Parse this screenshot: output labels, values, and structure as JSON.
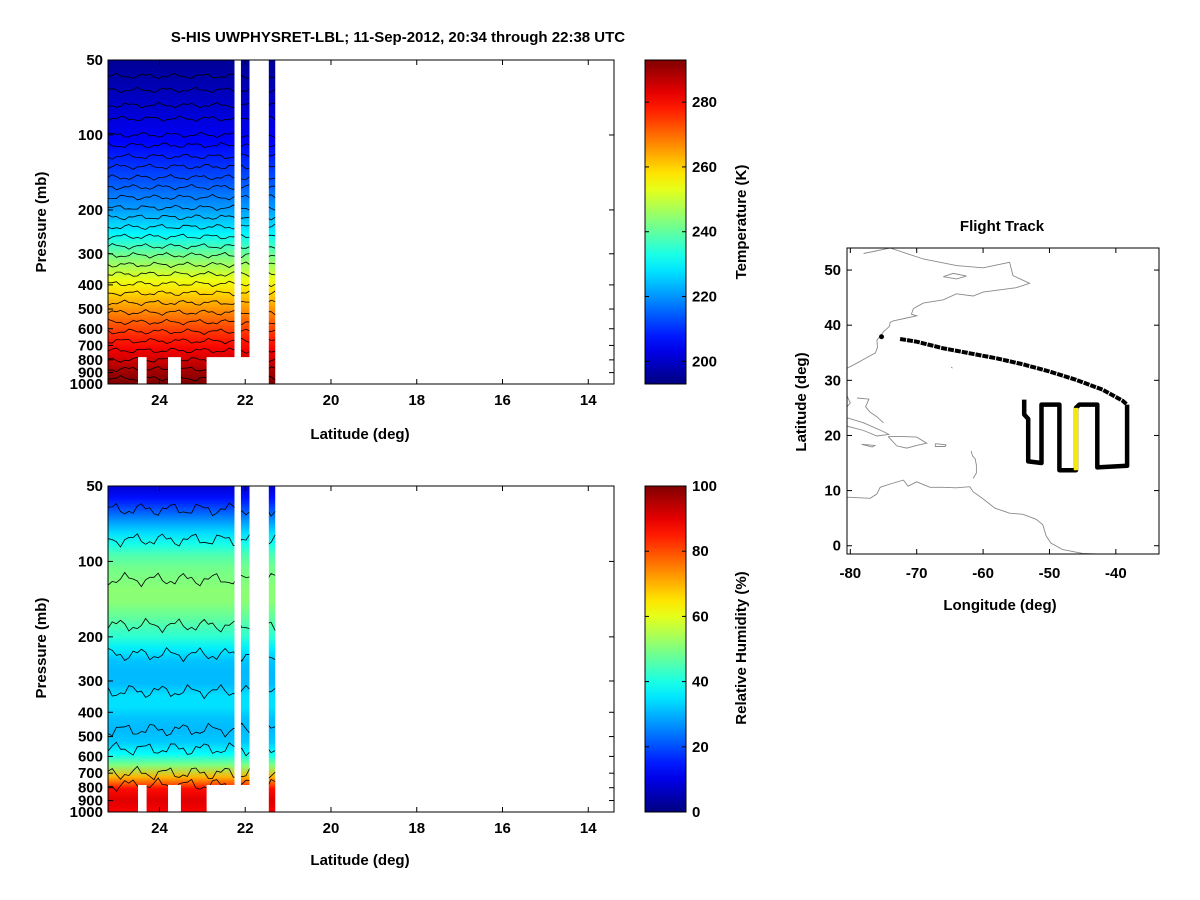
{
  "title": "S-HIS UWPHYSRET-LBL;   11-Sep-2012, 20:34 through 22:38 UTC",
  "chart_data": [
    {
      "id": "temperature",
      "type": "heatmap",
      "xlabel": "Latitude (deg)",
      "ylabel": "Pressure (mb)",
      "xlim": [
        25.2,
        13.4
      ],
      "xticks": [
        24,
        22,
        20,
        18,
        16,
        14
      ],
      "xtick_labels": [
        "24",
        "22",
        "20",
        "18",
        "16",
        "14"
      ],
      "ylim": [
        50,
        1000
      ],
      "yscale": "log",
      "yticks": [
        50,
        100,
        200,
        300,
        400,
        500,
        600,
        700,
        800,
        900,
        1000
      ],
      "ytick_labels": [
        "50",
        "100",
        "200",
        "300",
        "400",
        "500",
        "600",
        "700",
        "800",
        "900",
        "1000"
      ],
      "colorbar": {
        "label": "Temperature (K)",
        "range": [
          193,
          293
        ],
        "ticks": [
          200,
          220,
          240,
          260,
          280
        ],
        "tick_labels": [
          "200",
          "220",
          "240",
          "260",
          "280"
        ]
      },
      "data_extent_lat": [
        25.2,
        21.3
      ],
      "gaps_lat": [
        [
          22.25,
          22.1
        ],
        [
          21.9,
          21.45
        ]
      ],
      "surface_gap_pressure": 780,
      "profile": [
        {
          "p": 50,
          "v": 195
        },
        {
          "p": 100,
          "v": 204
        },
        {
          "p": 150,
          "v": 213
        },
        {
          "p": 200,
          "v": 221
        },
        {
          "p": 250,
          "v": 230
        },
        {
          "p": 300,
          "v": 241
        },
        {
          "p": 400,
          "v": 256
        },
        {
          "p": 500,
          "v": 266
        },
        {
          "p": 600,
          "v": 274
        },
        {
          "p": 700,
          "v": 280
        },
        {
          "p": 800,
          "v": 285
        },
        {
          "p": 900,
          "v": 290
        },
        {
          "p": 1000,
          "v": 293
        }
      ],
      "contour_pressures": [
        58,
        66,
        76,
        86,
        100,
        110,
        122,
        134,
        148,
        162,
        178,
        196,
        214,
        234,
        256,
        280,
        304,
        332,
        362,
        396,
        432,
        472,
        516,
        564,
        616,
        672,
        734,
        800,
        872,
        950
      ]
    },
    {
      "id": "humidity",
      "type": "heatmap",
      "xlabel": "Latitude (deg)",
      "ylabel": "Pressure (mb)",
      "xlim": [
        25.2,
        13.4
      ],
      "xticks": [
        24,
        22,
        20,
        18,
        16,
        14
      ],
      "xtick_labels": [
        "24",
        "22",
        "20",
        "18",
        "16",
        "14"
      ],
      "ylim": [
        50,
        1000
      ],
      "yscale": "log",
      "yticks": [
        50,
        100,
        200,
        300,
        400,
        500,
        600,
        700,
        800,
        900,
        1000
      ],
      "ytick_labels": [
        "50",
        "100",
        "200",
        "300",
        "400",
        "500",
        "600",
        "700",
        "800",
        "900",
        "1000"
      ],
      "colorbar": {
        "label": "Relative Humidity (%)",
        "range": [
          0,
          100
        ],
        "ticks": [
          0,
          20,
          40,
          60,
          80,
          100
        ],
        "tick_labels": [
          "0",
          "20",
          "40",
          "60",
          "80",
          "100"
        ]
      },
      "data_extent_lat": [
        25.2,
        21.3
      ],
      "gaps_lat": [
        [
          22.25,
          22.1
        ],
        [
          21.9,
          21.45
        ]
      ],
      "surface_gap_pressure": 780,
      "profile": [
        {
          "p": 50,
          "v": 8
        },
        {
          "p": 60,
          "v": 18
        },
        {
          "p": 75,
          "v": 33
        },
        {
          "p": 100,
          "v": 48
        },
        {
          "p": 140,
          "v": 52
        },
        {
          "p": 200,
          "v": 42
        },
        {
          "p": 240,
          "v": 32
        },
        {
          "p": 300,
          "v": 30
        },
        {
          "p": 360,
          "v": 36
        },
        {
          "p": 450,
          "v": 30
        },
        {
          "p": 550,
          "v": 33
        },
        {
          "p": 620,
          "v": 42
        },
        {
          "p": 700,
          "v": 62
        },
        {
          "p": 760,
          "v": 80
        },
        {
          "p": 850,
          "v": 92
        },
        {
          "p": 1000,
          "v": 88
        }
      ],
      "contour_pressures": [
        62,
        82,
        118,
        180,
        235,
        330,
        470,
        560,
        700,
        780
      ]
    },
    {
      "id": "flight-track",
      "type": "line",
      "title": "Flight Track",
      "xlabel": "Longitude (deg)",
      "ylabel": "Latitude (deg)",
      "xlim": [
        -80.5,
        -33.5
      ],
      "ylim": [
        -1.5,
        54
      ],
      "xticks": [
        -80,
        -70,
        -60,
        -50,
        -40
      ],
      "xtick_labels": [
        "-80",
        "-70",
        "-60",
        "-50",
        "-40"
      ],
      "yticks": [
        0,
        10,
        20,
        30,
        40,
        50
      ],
      "ytick_labels": [
        "0",
        "10",
        "20",
        "30",
        "40",
        "50"
      ],
      "transit_track": [
        [
          -72.5,
          37.5
        ],
        [
          -70,
          37.0
        ],
        [
          -66,
          35.8
        ],
        [
          -62,
          34.9
        ],
        [
          -58,
          34.0
        ],
        [
          -54,
          32.9
        ],
        [
          -50,
          31.6
        ],
        [
          -46,
          30.1
        ],
        [
          -42,
          28.3
        ],
        [
          -39,
          26.3
        ],
        [
          -38.3,
          25.6
        ]
      ],
      "pattern_track": [
        [
          -38.3,
          25.6
        ],
        [
          -38.3,
          14.5
        ],
        [
          -42.8,
          14.2
        ],
        [
          -42.8,
          25.6
        ],
        [
          -45.5,
          25.6
        ],
        [
          -46,
          25.0
        ],
        [
          -46,
          13.7
        ],
        [
          -48.5,
          13.7
        ],
        [
          -48.5,
          25.6
        ],
        [
          -51.2,
          25.6
        ],
        [
          -51.2,
          15.0
        ],
        [
          -53.2,
          15.3
        ],
        [
          -53.2,
          23.0
        ],
        [
          -53.8,
          23.8
        ],
        [
          -53.8,
          26.5
        ]
      ],
      "highlight_track": [
        [
          -46,
          25.0
        ],
        [
          -46,
          13.7
        ]
      ],
      "origin_point": [
        -75.3,
        37.9
      ],
      "track_color": "#000000",
      "highlight_color": "#f5e80f",
      "coastlines": [
        [
          [
            -78,
            53
          ],
          [
            -74,
            54
          ],
          [
            -69,
            52
          ],
          [
            -64,
            50.8
          ],
          [
            -60,
            50.4
          ],
          [
            -56,
            51.4
          ],
          [
            -55.5,
            49
          ],
          [
            -53,
            47.6
          ],
          [
            -55,
            46.8
          ],
          [
            -60,
            46
          ],
          [
            -61.5,
            45.3
          ],
          [
            -64,
            45.7
          ],
          [
            -66,
            44.6
          ],
          [
            -69,
            44
          ],
          [
            -70.5,
            43
          ],
          [
            -70.8,
            42
          ],
          [
            -70,
            41.7
          ],
          [
            -71.5,
            41.3
          ],
          [
            -73.5,
            40.8
          ],
          [
            -74,
            40.5
          ],
          [
            -74.1,
            39.8
          ],
          [
            -75,
            38.8
          ],
          [
            -76,
            37.3
          ],
          [
            -75.9,
            36
          ],
          [
            -76.2,
            35
          ],
          [
            -78,
            33.8
          ],
          [
            -79.2,
            33
          ],
          [
            -80.5,
            32.2
          ]
        ],
        [
          [
            -66,
            48.8
          ],
          [
            -64.5,
            49.4
          ],
          [
            -62.5,
            48.9
          ],
          [
            -64,
            48.4
          ],
          [
            -66,
            48.8
          ]
        ],
        [
          [
            -80.5,
            27.2
          ],
          [
            -80,
            25.9
          ],
          [
            -80.5,
            25.2
          ]
        ],
        [
          [
            -79,
            26.8
          ],
          [
            -77.2,
            26.6
          ],
          [
            -77.7,
            25.2
          ],
          [
            -77,
            24.2
          ],
          [
            -76,
            23.4
          ],
          [
            -75,
            22.3
          ]
        ],
        [
          [
            -80.5,
            23.2
          ],
          [
            -78,
            22.3
          ],
          [
            -75,
            20.7
          ],
          [
            -74.2,
            20.2
          ],
          [
            -76,
            19.9
          ],
          [
            -78,
            20.9
          ],
          [
            -80.5,
            21.7
          ]
        ],
        [
          [
            -74.3,
            19.8
          ],
          [
            -72,
            19.8
          ],
          [
            -70,
            19.7
          ],
          [
            -68.5,
            18.6
          ],
          [
            -70,
            18.2
          ],
          [
            -71.5,
            17.7
          ],
          [
            -73,
            18.1
          ],
          [
            -74.3,
            19.8
          ]
        ],
        [
          [
            -78.3,
            18.4
          ],
          [
            -76.3,
            18.2
          ],
          [
            -76.7,
            17.9
          ],
          [
            -78.3,
            18.4
          ]
        ],
        [
          [
            -67.2,
            18.5
          ],
          [
            -65.6,
            18.3
          ],
          [
            -65.7,
            18.0
          ],
          [
            -67.2,
            18.0
          ],
          [
            -67.2,
            18.5
          ]
        ],
        [
          [
            -61.8,
            17.2
          ],
          [
            -61.6,
            16.3
          ],
          [
            -61.2,
            15.8
          ],
          [
            -61.0,
            14.6
          ],
          [
            -61.0,
            13.2
          ],
          [
            -61.5,
            12.2
          ]
        ],
        [
          [
            -80.5,
            8.8
          ],
          [
            -77,
            8.6
          ],
          [
            -76,
            9.4
          ],
          [
            -75.5,
            10.6
          ],
          [
            -74,
            11.2
          ],
          [
            -72,
            11.9
          ],
          [
            -71.3,
            10.8
          ],
          [
            -70,
            11.6
          ],
          [
            -68,
            10.6
          ],
          [
            -66,
            10.6
          ],
          [
            -64,
            10.5
          ],
          [
            -62,
            10.7
          ],
          [
            -61.5,
            9.8
          ],
          [
            -60,
            8.5
          ],
          [
            -58.2,
            6.8
          ],
          [
            -56,
            5.9
          ],
          [
            -54,
            5.7
          ],
          [
            -52,
            4.8
          ],
          [
            -51,
            3.8
          ],
          [
            -50.5,
            1.8
          ],
          [
            -49.8,
            0.5
          ],
          [
            -48,
            -0.7
          ],
          [
            -45,
            -1.4
          ],
          [
            -43,
            -1.5
          ]
        ],
        [
          [
            -64.8,
            32.4
          ],
          [
            -64.6,
            32.2
          ]
        ]
      ]
    }
  ]
}
